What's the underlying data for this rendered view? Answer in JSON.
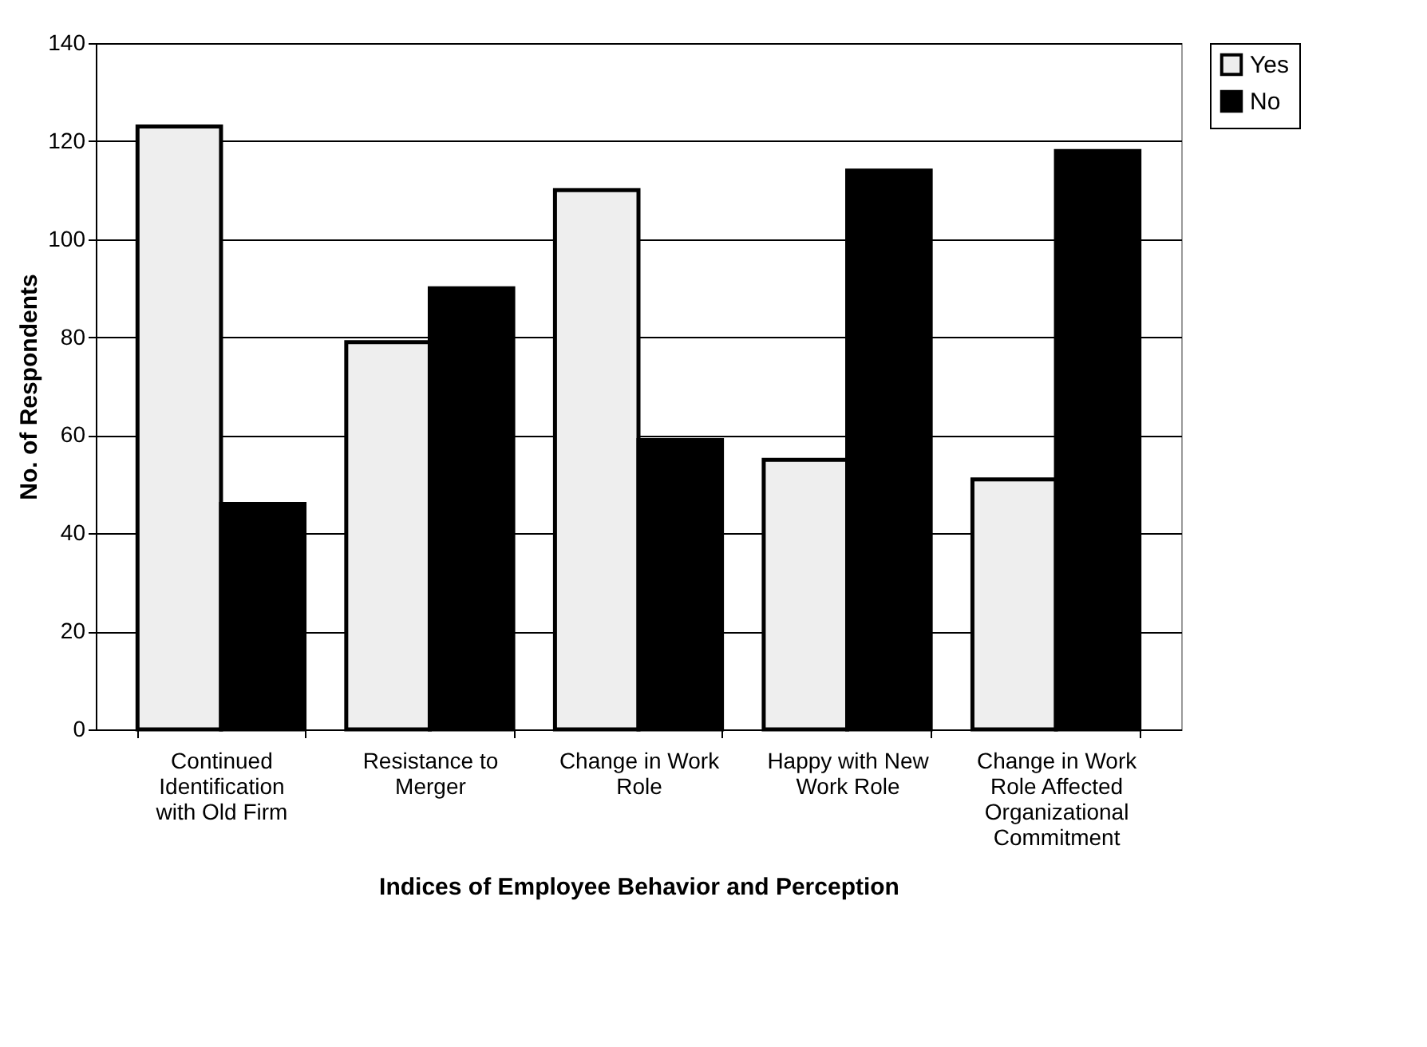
{
  "chart_data": {
    "type": "bar",
    "xlabel": "Indices of Employee Behavior and Perception",
    "ylabel": "No. of Respondents",
    "categories": [
      "Continued Identification with Old Firm",
      "Resistance to Merger",
      "Change in Work Role",
      "Happy with New Work Role",
      "Change in Work Role Affected Organizational Commitment"
    ],
    "series": [
      {
        "name": "Yes",
        "color": "#eeeeee",
        "values": [
          123,
          79,
          110,
          55,
          51
        ]
      },
      {
        "name": "No",
        "color": "#000000",
        "values": [
          46,
          90,
          59,
          114,
          118
        ]
      }
    ],
    "ylim": [
      0,
      140
    ],
    "yticks": [
      0,
      20,
      40,
      60,
      80,
      100,
      120,
      140
    ],
    "grid": "y",
    "legend": "right"
  }
}
